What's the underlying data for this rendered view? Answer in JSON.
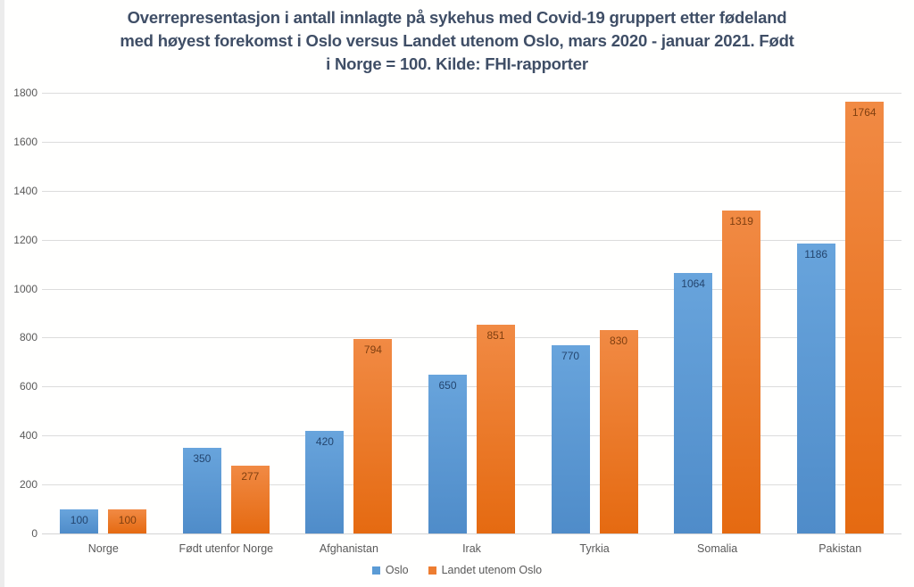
{
  "chart_data": {
    "type": "bar",
    "title": "Overrepresentasjon i antall innlagte på sykehus med Covid-19 gruppert etter fødeland med høyest forekomst i Oslo versus Landet utenom Oslo, mars 2020 - januar 2021. Født i Norge = 100. Kilde: FHI-rapporter",
    "title_lines": [
      "Overrepresentasjon i antall innlagte på sykehus med Covid-19 gruppert etter fødeland",
      "med høyest forekomst i Oslo versus Landet utenom Oslo, mars 2020 - januar 2021. Født",
      "i Norge = 100. Kilde: FHI-rapporter"
    ],
    "categories": [
      "Norge",
      "Født utenfor Norge",
      "Afghanistan",
      "Irak",
      "Tyrkia",
      "Somalia",
      "Pakistan"
    ],
    "series": [
      {
        "name": "Oslo",
        "color": "#5B9BD5",
        "label_color": "#24456e",
        "values": [
          100,
          350,
          420,
          650,
          770,
          1064,
          1186
        ]
      },
      {
        "name": "Landet utenom Oslo",
        "color": "#ED7D31",
        "label_color": "#7f3f10",
        "values": [
          100,
          277,
          794,
          851,
          830,
          1319,
          1764
        ]
      }
    ],
    "y_axis": {
      "min": 0,
      "max": 1800,
      "step": 200,
      "tick_labels": [
        "0",
        "200",
        "400",
        "600",
        "800",
        "1000",
        "1200",
        "1400",
        "1600",
        "1800"
      ]
    },
    "grid": true,
    "data_labels": "inside-end",
    "legend_position": "bottom",
    "title_color": "#3f4e66",
    "grid_color": "#dcdcdc",
    "axis_text_color": "#595959"
  }
}
